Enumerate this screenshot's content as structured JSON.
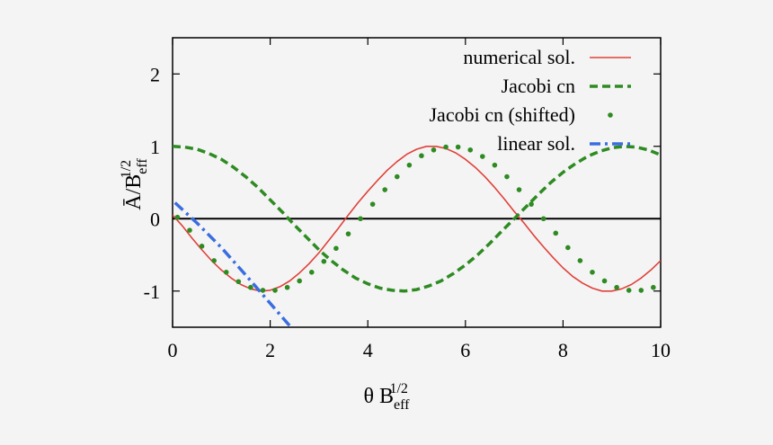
{
  "chart_data": {
    "type": "line",
    "xlim": [
      0,
      10
    ],
    "ylim": [
      -1.5,
      2.5
    ],
    "x_ticks": [
      "0",
      "2",
      "4",
      "6",
      "8",
      "10"
    ],
    "y_ticks": [
      "-1",
      "0",
      "1",
      "2"
    ],
    "xlabel": {
      "main": "θ B",
      "sup": "1/2",
      "sub": "eff"
    },
    "ylabel": {
      "main": "Ā/B",
      "sup": "1/2",
      "sub": "eff"
    },
    "grid": false,
    "legend_position": "top-right",
    "reference_line": {
      "y": 0,
      "color": "#000000"
    },
    "series": [
      {
        "name": "numerical sol.",
        "style": "solid",
        "color": "#e0413a",
        "x": [
          0.0,
          0.2,
          0.4,
          0.6,
          0.8,
          1.0,
          1.2,
          1.4,
          1.6,
          1.8,
          2.0,
          2.2,
          2.4,
          2.6,
          2.8,
          3.0,
          3.2,
          3.4,
          3.6,
          3.8,
          4.0,
          4.2,
          4.4,
          4.6,
          4.8,
          5.0,
          5.2,
          5.4,
          5.6,
          5.8,
          6.0,
          6.2,
          6.4,
          6.6,
          6.8,
          7.0,
          7.2,
          7.4,
          7.6,
          7.8,
          8.0,
          8.2,
          8.4,
          8.6,
          8.8,
          9.0,
          9.2,
          9.4,
          9.6,
          9.8,
          10.0
        ],
        "y": [
          0.05,
          -0.1,
          -0.27,
          -0.43,
          -0.58,
          -0.71,
          -0.82,
          -0.91,
          -0.97,
          -1.0,
          -0.99,
          -0.94,
          -0.86,
          -0.75,
          -0.62,
          -0.47,
          -0.3,
          -0.13,
          0.05,
          0.22,
          0.38,
          0.53,
          0.67,
          0.79,
          0.89,
          0.96,
          1.0,
          1.0,
          0.97,
          0.91,
          0.82,
          0.71,
          0.58,
          0.43,
          0.27,
          0.1,
          -0.06,
          -0.23,
          -0.39,
          -0.54,
          -0.68,
          -0.8,
          -0.89,
          -0.96,
          -1.0,
          -1.0,
          -0.97,
          -0.91,
          -0.82,
          -0.71,
          -0.58
        ]
      },
      {
        "name": "Jacobi cn",
        "style": "dashed",
        "color": "#2e8b22",
        "x": [
          0.0,
          0.25,
          0.5,
          0.75,
          1.0,
          1.25,
          1.5,
          1.75,
          2.0,
          2.25,
          2.5,
          2.75,
          3.0,
          3.25,
          3.5,
          3.75,
          4.0,
          4.25,
          4.5,
          4.75,
          5.0,
          5.25,
          5.5,
          5.75,
          6.0,
          6.25,
          6.5,
          6.75,
          7.0,
          7.25,
          7.5,
          7.75,
          8.0,
          8.25,
          8.5,
          8.75,
          9.0,
          9.25,
          9.5,
          9.75,
          10.0
        ],
        "y": [
          1.0,
          0.99,
          0.96,
          0.9,
          0.82,
          0.71,
          0.58,
          0.43,
          0.26,
          0.09,
          -0.09,
          -0.26,
          -0.43,
          -0.58,
          -0.71,
          -0.82,
          -0.9,
          -0.96,
          -0.99,
          -1.0,
          -0.98,
          -0.93,
          -0.86,
          -0.76,
          -0.64,
          -0.5,
          -0.34,
          -0.17,
          0.0,
          0.17,
          0.34,
          0.5,
          0.64,
          0.76,
          0.86,
          0.93,
          0.98,
          1.0,
          0.99,
          0.95,
          0.88
        ]
      },
      {
        "name": "Jacobi cn (shifted)",
        "style": "dots",
        "color": "#2e8b22",
        "x": [
          0.1,
          0.35,
          0.6,
          0.85,
          1.1,
          1.35,
          1.6,
          1.85,
          2.1,
          2.35,
          2.6,
          2.85,
          3.1,
          3.35,
          3.6,
          3.85,
          4.1,
          4.35,
          4.6,
          4.85,
          5.1,
          5.35,
          5.6,
          5.85,
          6.1,
          6.35,
          6.6,
          6.85,
          7.1,
          7.35,
          7.6,
          7.85,
          8.1,
          8.35,
          8.6,
          8.85,
          9.1,
          9.35,
          9.6,
          9.85
        ],
        "y": [
          0.02,
          -0.16,
          -0.38,
          -0.58,
          -0.74,
          -0.87,
          -0.95,
          -0.99,
          -0.99,
          -0.95,
          -0.86,
          -0.74,
          -0.59,
          -0.41,
          -0.21,
          0.0,
          0.2,
          0.4,
          0.58,
          0.74,
          0.87,
          0.95,
          0.99,
          0.99,
          0.95,
          0.86,
          0.74,
          0.58,
          0.4,
          0.2,
          0.0,
          -0.2,
          -0.4,
          -0.58,
          -0.74,
          -0.86,
          -0.95,
          -0.99,
          -0.99,
          -0.95
        ]
      },
      {
        "name": "linear sol.",
        "style": "dashdot",
        "color": "#3a6ee0",
        "x": [
          0.05,
          0.5,
          1.0,
          1.5,
          2.0,
          2.4
        ],
        "y": [
          0.22,
          -0.06,
          -0.4,
          -0.78,
          -1.17,
          -1.48
        ]
      }
    ]
  }
}
